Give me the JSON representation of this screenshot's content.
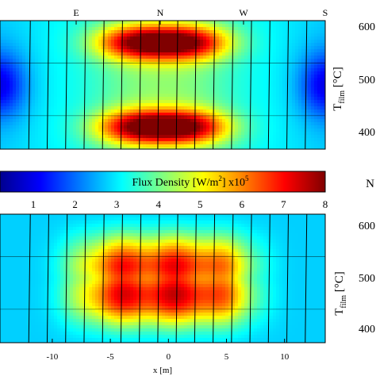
{
  "chart_data": [
    {
      "type": "heatmap",
      "panel": "top",
      "title": "",
      "xlabel": "",
      "ylabel": "T_film [°C]",
      "ylabel_main": "T",
      "ylabel_sub": "film",
      "ylabel_unit": "[°C]",
      "ytick_labels": [
        "600",
        "500",
        "400"
      ],
      "direction_labels": [
        "E",
        "N",
        "W",
        "S"
      ],
      "color_range": [
        1,
        8
      ],
      "hotspots": [
        {
          "x": 0,
          "band": "upper",
          "flux": 7.6
        },
        {
          "x": 0,
          "band": "lower",
          "flux": 7.6
        }
      ]
    },
    {
      "type": "heatmap",
      "panel": "bottom",
      "title": "",
      "xlabel": "x [m]",
      "ylabel": "T_film [°C]",
      "ylabel_main": "T",
      "ylabel_sub": "film",
      "ylabel_unit": "[°C]",
      "ytick_labels": [
        "600",
        "500",
        "400"
      ],
      "xtick_labels": [
        "-10",
        "-5",
        "0",
        "5",
        "10"
      ],
      "xtick_values": [
        -10,
        -5,
        0,
        5,
        10
      ],
      "xlim": [
        -14.5,
        13.5
      ],
      "color_range": [
        1,
        8
      ],
      "hotspots": [
        {
          "x": 0,
          "band": "middle",
          "flux": 7.2
        }
      ]
    }
  ],
  "colorbar": {
    "label": "Flux Density [W/m",
    "label_sup": "2",
    "label_after": "] x10",
    "label_sup2": "5",
    "tick_labels": [
      "1",
      "2",
      "3",
      "4",
      "5",
      "6",
      "7",
      "8"
    ],
    "range": [
      1,
      8
    ],
    "colors": [
      "#00008f",
      "#0000ff",
      "#0080ff",
      "#00ffff",
      "#80ff80",
      "#ffff00",
      "#ff8000",
      "#ff0000",
      "#800000"
    ]
  },
  "side_letter": "N"
}
